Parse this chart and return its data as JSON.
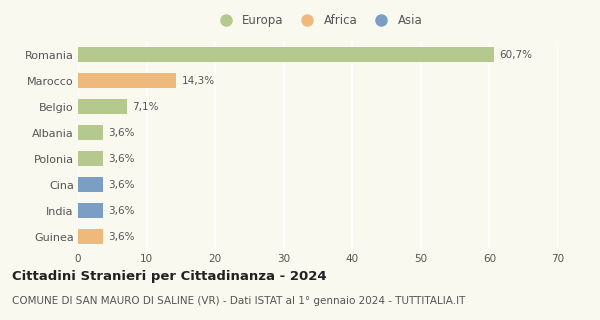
{
  "categories": [
    "Romania",
    "Marocco",
    "Belgio",
    "Albania",
    "Polonia",
    "Cina",
    "India",
    "Guinea"
  ],
  "values": [
    60.7,
    14.3,
    7.1,
    3.6,
    3.6,
    3.6,
    3.6,
    3.6
  ],
  "labels": [
    "60,7%",
    "14,3%",
    "7,1%",
    "3,6%",
    "3,6%",
    "3,6%",
    "3,6%",
    "3,6%"
  ],
  "colors": [
    "#b5c98e",
    "#f0b97c",
    "#b5c98e",
    "#b5c98e",
    "#b5c98e",
    "#7b9fc4",
    "#7b9fc4",
    "#f0b97c"
  ],
  "legend": [
    {
      "label": "Europa",
      "color": "#b5c98e"
    },
    {
      "label": "Africa",
      "color": "#f0b97c"
    },
    {
      "label": "Asia",
      "color": "#7b9fc4"
    }
  ],
  "xlim": [
    0,
    70
  ],
  "xticks": [
    0,
    10,
    20,
    30,
    40,
    50,
    60,
    70
  ],
  "title": "Cittadini Stranieri per Cittadinanza - 2024",
  "subtitle": "COMUNE DI SAN MAURO DI SALINE (VR) - Dati ISTAT al 1° gennaio 2024 - TUTTITALIA.IT",
  "background_color": "#f9f9f0",
  "grid_color": "#ffffff",
  "bar_height": 0.55,
  "label_fontsize": 7.5,
  "title_fontsize": 9.5,
  "subtitle_fontsize": 7.5,
  "ytick_fontsize": 8,
  "xtick_fontsize": 7.5,
  "legend_fontsize": 8.5
}
